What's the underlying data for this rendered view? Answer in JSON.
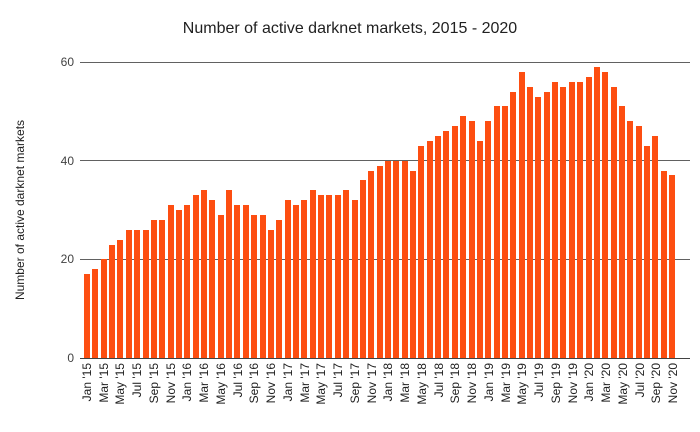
{
  "title": "Number of active darknet markets, 2015 - 2020",
  "y_axis": {
    "title": "Number of active darknet markets"
  },
  "colors": {
    "bar": "#fd4e11",
    "grid": "#616161",
    "axis": "#424242",
    "text": "#212121",
    "tick_text": "#424242"
  },
  "chart_data": {
    "type": "bar",
    "title": "Number of active darknet markets, 2015 - 2020",
    "xlabel": "",
    "ylabel": "Number of active darknet markets",
    "ylim": [
      0,
      60
    ],
    "y_ticks": [
      0,
      20,
      40,
      60
    ],
    "grid": "on",
    "legend": "none",
    "bar_color": "#fd4e11",
    "x_tick_label_every": 2,
    "categories": [
      "Jan '15",
      "Feb '15",
      "Mar '15",
      "Apr '15",
      "May '15",
      "Jun '15",
      "Jul '15",
      "Aug '15",
      "Sep '15",
      "Oct '15",
      "Nov '15",
      "Dec '15",
      "Jan '16",
      "Feb '16",
      "Mar '16",
      "Apr '16",
      "May '16",
      "Jun '16",
      "Jul '16",
      "Aug '16",
      "Sep '16",
      "Oct '16",
      "Nov '16",
      "Dec '16",
      "Jan '17",
      "Feb '17",
      "Mar '17",
      "Apr '17",
      "May '17",
      "Jun '17",
      "Jul '17",
      "Aug '17",
      "Sep '17",
      "Oct '17",
      "Nov '17",
      "Dec '17",
      "Jan '18",
      "Feb '18",
      "Mar '18",
      "Apr '18",
      "May '18",
      "Jun '18",
      "Jul '18",
      "Aug '18",
      "Sep '18",
      "Oct '18",
      "Nov '18",
      "Dec '18",
      "Jan '19",
      "Feb '19",
      "Mar '19",
      "Apr '19",
      "May '19",
      "Jun '19",
      "Jul '19",
      "Aug '19",
      "Sep '19",
      "Oct '19",
      "Nov '19",
      "Dec '19",
      "Jan '20",
      "Feb '20",
      "Mar '20",
      "Apr '20",
      "May '20",
      "Jun '20",
      "Jul '20",
      "Aug '20",
      "Sep '20",
      "Oct '20",
      "Nov '20"
    ],
    "values": [
      17,
      18,
      20,
      23,
      24,
      26,
      26,
      26,
      28,
      28,
      31,
      30,
      31,
      33,
      34,
      32,
      29,
      34,
      31,
      31,
      29,
      29,
      26,
      28,
      32,
      31,
      32,
      34,
      33,
      33,
      33,
      34,
      32,
      36,
      38,
      39,
      40,
      40,
      40,
      38,
      43,
      44,
      45,
      46,
      47,
      49,
      48,
      44,
      48,
      51,
      51,
      54,
      58,
      55,
      53,
      54,
      56,
      55,
      56,
      56,
      57,
      59,
      58,
      55,
      51,
      48,
      47,
      43,
      45,
      38,
      37
    ]
  }
}
